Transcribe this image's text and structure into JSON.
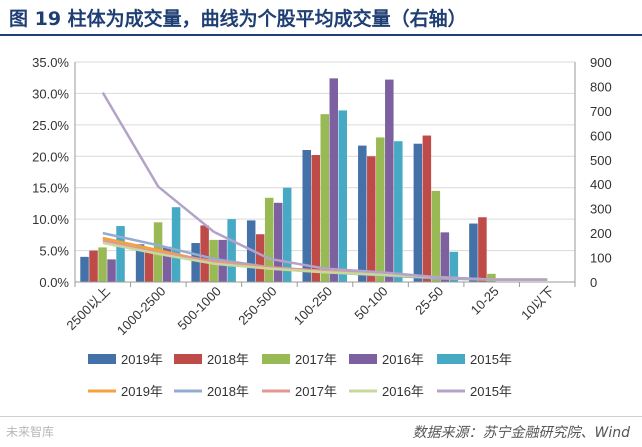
{
  "title": "图 19  柱体为成交量，曲线为个股平均成交量（右轴）",
  "source": "数据来源：苏宁金融研究院、Wind",
  "watermark": "未来智库",
  "chart_data": {
    "type": "bar+line",
    "categories": [
      "2500以上",
      "1000-2500",
      "500-1000",
      "250-500",
      "100-250",
      "50-100",
      "25-50",
      "10-25",
      "10以下"
    ],
    "y_left": {
      "min": 0,
      "max": 35,
      "step": 5,
      "ticks": [
        "0.0%",
        "5.0%",
        "10.0%",
        "15.0%",
        "20.0%",
        "25.0%",
        "30.0%",
        "35.0%"
      ]
    },
    "y_right": {
      "min": 0,
      "max": 900,
      "step": 100,
      "ticks": [
        "0",
        "100",
        "200",
        "300",
        "400",
        "500",
        "600",
        "700",
        "800",
        "900"
      ]
    },
    "grid": "horizontal",
    "bar_series": [
      {
        "name": "2019年",
        "color": "#4472a8",
        "values": [
          4.0,
          6.0,
          6.2,
          9.8,
          21.0,
          21.7,
          22.0,
          9.3,
          0.0
        ]
      },
      {
        "name": "2018年",
        "color": "#be4b48",
        "values": [
          5.0,
          5.2,
          9.0,
          7.6,
          20.2,
          20.0,
          23.3,
          10.3,
          0.0
        ]
      },
      {
        "name": "2017年",
        "color": "#98b954",
        "values": [
          5.5,
          9.5,
          6.7,
          13.4,
          26.7,
          23.0,
          14.5,
          1.3,
          0.0
        ]
      },
      {
        "name": "2016年",
        "color": "#7d60a0",
        "values": [
          3.6,
          5.6,
          6.7,
          12.6,
          32.4,
          32.2,
          7.9,
          0.0,
          0.0
        ]
      },
      {
        "name": "2015年",
        "color": "#46aac5",
        "values": [
          8.9,
          11.9,
          10.0,
          15.0,
          27.3,
          22.4,
          4.8,
          0.0,
          0.0
        ]
      }
    ],
    "line_series": [
      {
        "name": "2019年",
        "color": "#f3a23c",
        "values": [
          180,
          130,
          80,
          55,
          40,
          30,
          15,
          10,
          10
        ]
      },
      {
        "name": "2018年",
        "color": "#94acd0",
        "values": [
          200,
          150,
          95,
          60,
          40,
          28,
          15,
          10,
          10
        ]
      },
      {
        "name": "2017年",
        "color": "#e39793",
        "values": [
          170,
          120,
          85,
          60,
          45,
          35,
          20,
          10,
          10
        ]
      },
      {
        "name": "2016年",
        "color": "#c7d99a",
        "values": [
          160,
          115,
          75,
          55,
          40,
          30,
          20,
          10,
          10
        ]
      },
      {
        "name": "2015年",
        "color": "#b3a3c9",
        "values": [
          775,
          390,
          205,
          95,
          55,
          40,
          20,
          10,
          10
        ]
      }
    ]
  }
}
